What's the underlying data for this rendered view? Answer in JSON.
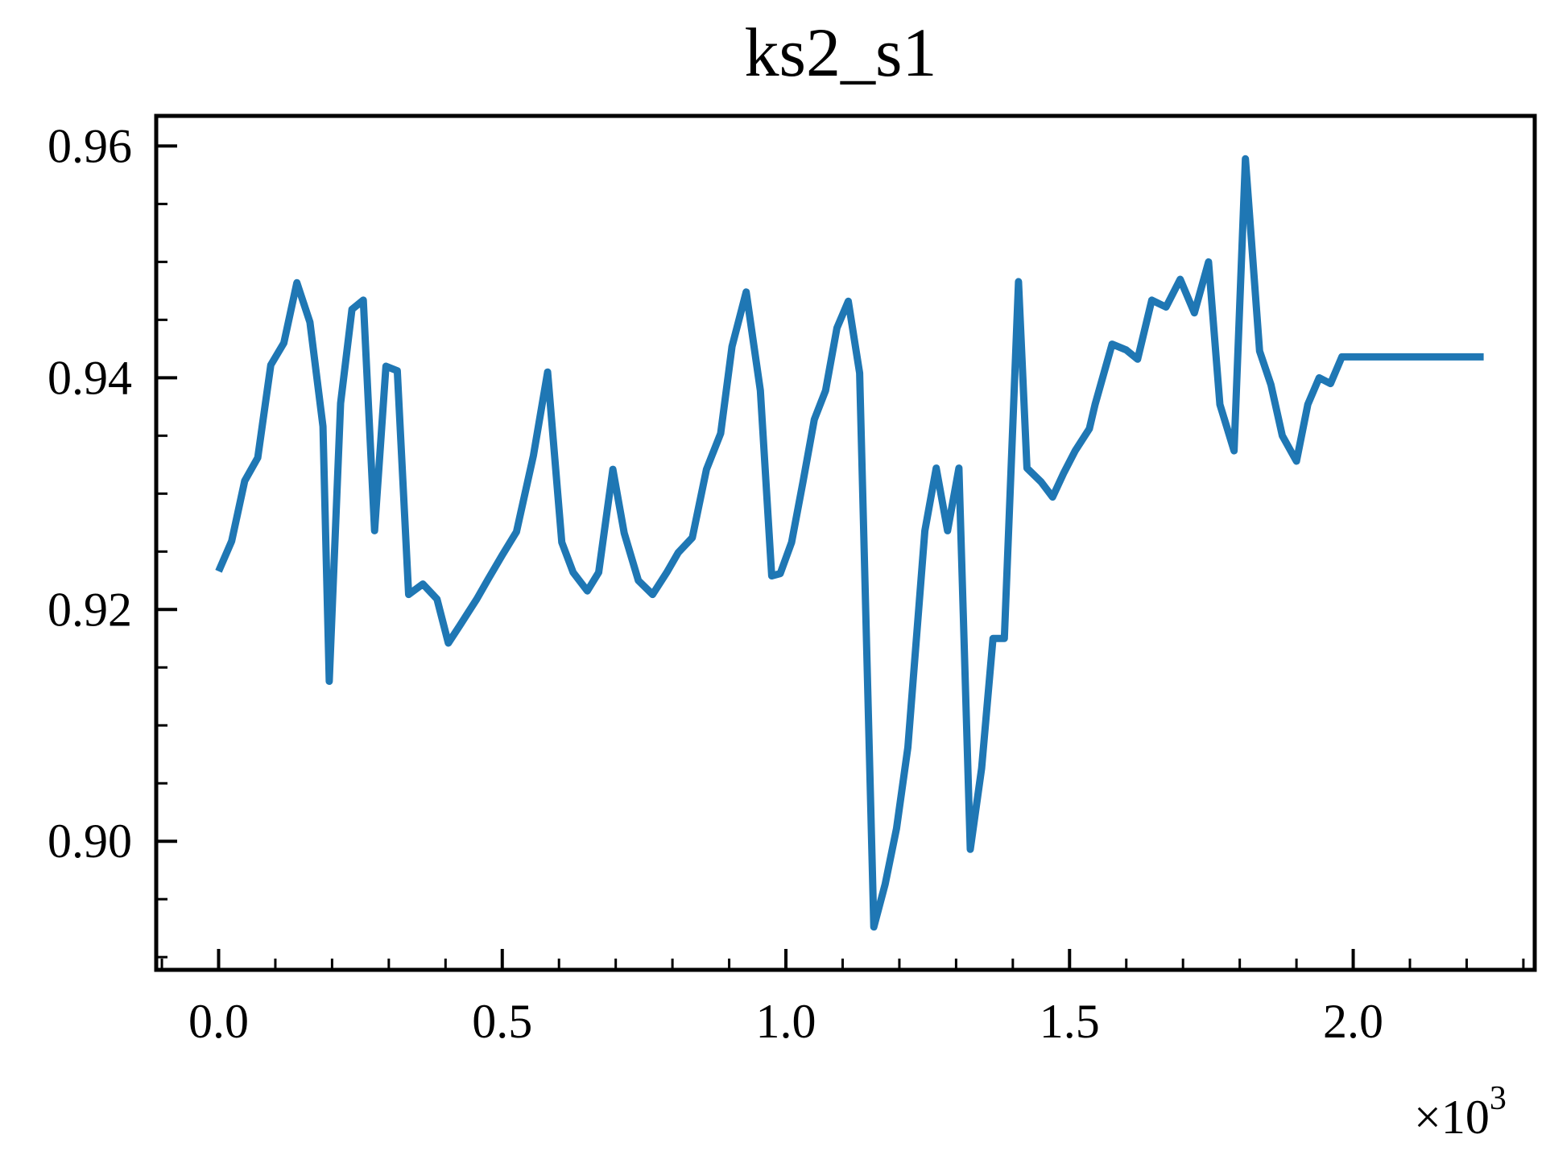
{
  "chart_data": {
    "type": "line",
    "title": "ks2_s1",
    "xlabel": "",
    "ylabel": "",
    "x_multiplier_label": "×10",
    "x_multiplier_exponent": "3",
    "xlim": [
      -0.11,
      2.32
    ],
    "ylim": [
      0.8889,
      0.9626
    ],
    "grid": false,
    "legend": "none",
    "line_color": "#1f77b4",
    "x_ticks": [
      {
        "value": 0.0,
        "label": "0.0"
      },
      {
        "value": 0.5,
        "label": "0.5"
      },
      {
        "value": 1.0,
        "label": "1.0"
      },
      {
        "value": 1.5,
        "label": "1.5"
      },
      {
        "value": 2.0,
        "label": "2.0"
      }
    ],
    "y_ticks": [
      {
        "value": 0.9,
        "label": "0.90"
      },
      {
        "value": 0.92,
        "label": "0.92"
      },
      {
        "value": 0.94,
        "label": "0.94"
      },
      {
        "value": 0.96,
        "label": "0.96"
      }
    ],
    "series": [
      {
        "x": [
          0.0,
          0.023,
          0.046,
          0.069,
          0.092,
          0.115,
          0.138,
          0.161,
          0.184,
          0.195,
          0.215,
          0.235,
          0.255,
          0.275,
          0.295,
          0.315,
          0.335,
          0.36,
          0.385,
          0.405,
          0.425,
          0.455,
          0.475,
          0.5,
          0.525,
          0.555,
          0.58,
          0.605,
          0.625,
          0.65,
          0.67,
          0.695,
          0.715,
          0.74,
          0.765,
          0.79,
          0.81,
          0.835,
          0.86,
          0.885,
          0.905,
          0.93,
          0.955,
          0.975,
          0.99,
          1.01,
          1.03,
          1.05,
          1.07,
          1.09,
          1.11,
          1.13,
          1.155,
          1.175,
          1.195,
          1.215,
          1.245,
          1.265,
          1.285,
          1.305,
          1.325,
          1.345,
          1.365,
          1.385,
          1.41,
          1.425,
          1.45,
          1.47,
          1.49,
          1.51,
          1.535,
          1.545,
          1.575,
          1.6,
          1.62,
          1.645,
          1.67,
          1.695,
          1.72,
          1.745,
          1.765,
          1.79,
          1.81,
          1.835,
          1.855,
          1.875,
          1.9,
          1.92,
          1.94,
          1.96,
          1.98,
          2.0,
          2.02,
          2.045,
          2.07,
          2.09,
          2.12,
          2.145,
          2.165,
          2.185,
          2.21,
          2.23
        ],
        "y": [
          0.9233,
          0.9259,
          0.9311,
          0.9331,
          0.9411,
          0.943,
          0.9482,
          0.9448,
          0.9358,
          0.9138,
          0.9378,
          0.9459,
          0.9467,
          0.9268,
          0.941,
          0.9406,
          0.9213,
          0.9222,
          0.9209,
          0.9171,
          0.9186,
          0.9209,
          0.9226,
          0.9247,
          0.9267,
          0.9333,
          0.9405,
          0.9258,
          0.9232,
          0.9216,
          0.9232,
          0.9321,
          0.9266,
          0.9225,
          0.9213,
          0.9232,
          0.9249,
          0.9262,
          0.9321,
          0.9352,
          0.9427,
          0.9474,
          0.9389,
          0.9229,
          0.9231,
          0.9258,
          0.931,
          0.9364,
          0.9389,
          0.9443,
          0.9466,
          0.9404,
          0.8926,
          0.8963,
          0.9011,
          0.9081,
          0.9268,
          0.9322,
          0.9268,
          0.9322,
          0.8993,
          0.9063,
          0.9175,
          0.9175,
          0.9483,
          0.9322,
          0.931,
          0.9297,
          0.9318,
          0.9337,
          0.9356,
          0.9377,
          0.9429,
          0.9424,
          0.9416,
          0.9467,
          0.9461,
          0.9485,
          0.9456,
          0.95,
          0.9377,
          0.9337,
          0.9589,
          0.9423,
          0.9394,
          0.935,
          0.9328,
          0.9377,
          0.94,
          0.9395,
          0.9418,
          0.9418,
          0.9418,
          0.9418,
          0.9418,
          0.9418,
          0.9418,
          0.9418,
          0.9418,
          0.9418,
          0.9418,
          0.9418
        ]
      }
    ]
  }
}
